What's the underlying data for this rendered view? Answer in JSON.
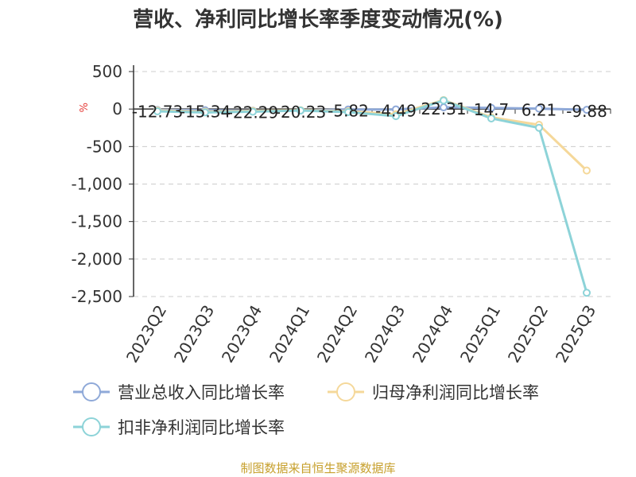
{
  "title": "营收、净利同比增长率季度变动情况(%)",
  "footer": "制图数据来自恒生聚源数据库",
  "chart_data": {
    "type": "line",
    "ylabel": "%",
    "categories": [
      "2023Q2",
      "2023Q3",
      "2023Q4",
      "2024Q1",
      "2024Q2",
      "2024Q3",
      "2024Q4",
      "2025Q1",
      "2025Q2",
      "2025Q3"
    ],
    "ylim": [
      -2500,
      500
    ],
    "yticks": [
      500,
      0,
      -500,
      -1000,
      -1500,
      -2000,
      -2500
    ],
    "ytick_labels": [
      "500",
      "0",
      "-500",
      "-1,000",
      "-1,500",
      "-2,000",
      "-2,500"
    ],
    "grid": true,
    "legend_position": "bottom",
    "series": [
      {
        "name": "营业总收入同比增长率",
        "color": "#8fa9d8",
        "values": [
          -12.73,
          -15.34,
          -22.29,
          -20.23,
          -5.82,
          -4.49,
          22.31,
          14.7,
          6.21,
          -9.88
        ],
        "data_labels": [
          "-12.73",
          "-15.34",
          "-22.29",
          "-20.23",
          "-5.82",
          "-4.49",
          "22.31",
          "14.7",
          "6.21",
          "-9.88"
        ]
      },
      {
        "name": "归母净利润同比增长率",
        "color": "#f5d89a",
        "values": [
          -20,
          -35,
          -25,
          -15,
          -30,
          -70,
          120,
          -110,
          -210,
          -820
        ]
      },
      {
        "name": "扣非净利润同比增长率",
        "color": "#8dd3d8",
        "values": [
          -30,
          -45,
          -35,
          -20,
          -40,
          -95,
          115,
          -125,
          -250,
          -2450
        ]
      }
    ]
  }
}
